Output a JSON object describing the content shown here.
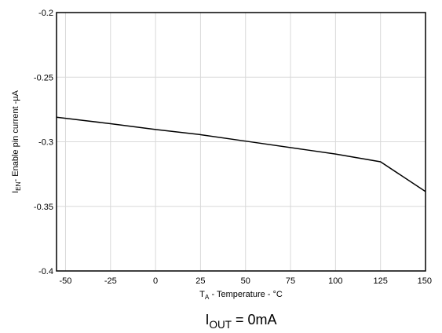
{
  "chart_data": {
    "type": "line",
    "xlabel": {
      "main": "T",
      "sub": "A",
      "rest": " - Temperature - °C"
    },
    "ylabel": {
      "main": "I",
      "sub": "EN",
      "rest": "- Enable pin current -µA"
    },
    "caption": {
      "main": "I",
      "sub": "OUT",
      "rest": " = 0mA"
    },
    "xlim": [
      -55,
      150
    ],
    "ylim": [
      -0.4,
      -0.2
    ],
    "xticks": [
      -50,
      -25,
      0,
      25,
      50,
      75,
      100,
      125,
      150
    ],
    "xtick_labels": [
      "-50",
      "-25",
      "0",
      "25",
      "50",
      "75",
      "100",
      "125",
      "150"
    ],
    "yticks": [
      -0.4,
      -0.35,
      -0.3,
      -0.25,
      -0.2
    ],
    "ytick_labels": [
      "-0.4",
      "-0.35",
      "-0.3",
      "-0.25",
      "-0.2"
    ],
    "grid": true,
    "series": [
      {
        "color": "#000000",
        "x": [
          -55,
          -40,
          -25,
          0,
          25,
          50,
          85,
          100,
          125,
          150
        ],
        "y": [
          -0.281,
          -0.2835,
          -0.286,
          -0.2905,
          -0.2945,
          -0.2995,
          -0.3065,
          -0.3095,
          -0.3155,
          -0.3385
        ]
      }
    ]
  }
}
